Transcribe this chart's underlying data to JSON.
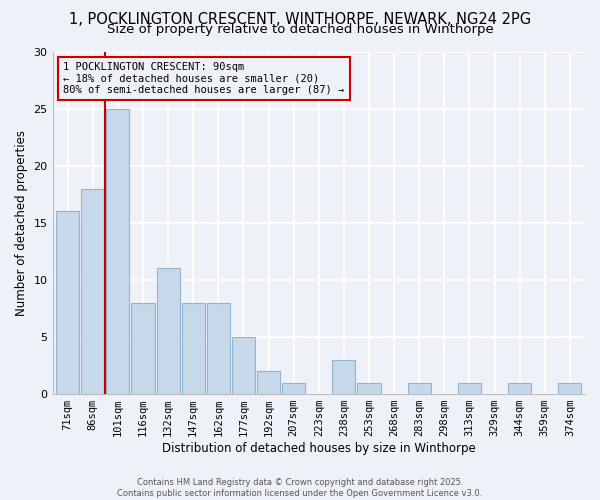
{
  "title_line1": "1, POCKLINGTON CRESCENT, WINTHORPE, NEWARK, NG24 2PG",
  "title_line2": "Size of property relative to detached houses in Winthorpe",
  "xlabel": "Distribution of detached houses by size in Winthorpe",
  "ylabel": "Number of detached properties",
  "categories": [
    "71sqm",
    "86sqm",
    "101sqm",
    "116sqm",
    "132sqm",
    "147sqm",
    "162sqm",
    "177sqm",
    "192sqm",
    "207sqm",
    "223sqm",
    "238sqm",
    "253sqm",
    "268sqm",
    "283sqm",
    "298sqm",
    "313sqm",
    "329sqm",
    "344sqm",
    "359sqm",
    "374sqm"
  ],
  "values": [
    16,
    18,
    25,
    8,
    11,
    8,
    8,
    5,
    2,
    1,
    0,
    3,
    1,
    0,
    1,
    0,
    1,
    0,
    1,
    0,
    1
  ],
  "bar_color": "#c8d8eb",
  "bar_edge_color": "#90b4d0",
  "vline_x_index": 1.5,
  "vline_color": "#cc0000",
  "annotation_text": "1 POCKLINGTON CRESCENT: 90sqm\n← 18% of detached houses are smaller (20)\n80% of semi-detached houses are larger (87) →",
  "annotation_box_color": "#cc0000",
  "annotation_bg": "#eef2f8",
  "ylim": [
    0,
    30
  ],
  "yticks": [
    0,
    5,
    10,
    15,
    20,
    25,
    30
  ],
  "background_color": "#eef2f8",
  "footer_line1": "Contains HM Land Registry data © Crown copyright and database right 2025.",
  "footer_line2": "Contains public sector information licensed under the Open Government Licence v3.0.",
  "title_fontsize": 10.5,
  "subtitle_fontsize": 9.5,
  "xlabel_fontsize": 8.5,
  "ylabel_fontsize": 8.5,
  "tick_fontsize": 7.5,
  "annot_fontsize": 7.5,
  "footer_fontsize": 6.0
}
